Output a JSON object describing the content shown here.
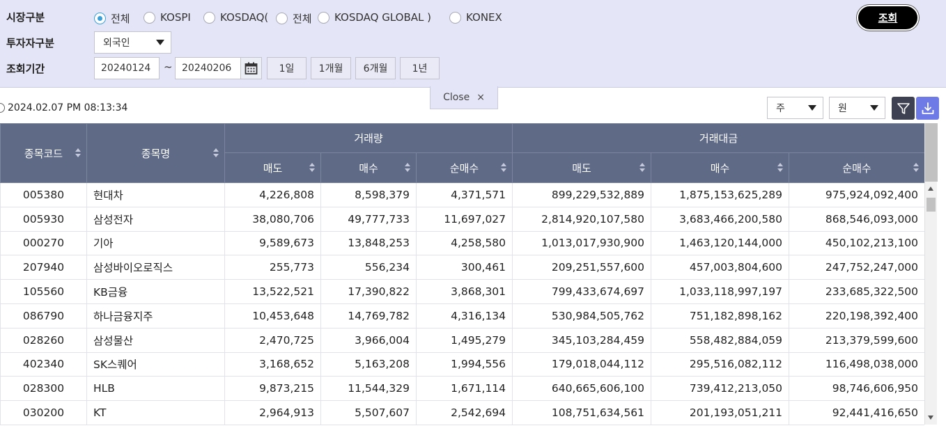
{
  "filters": {
    "market_label": "시장구분",
    "investor_label": "투자자구분",
    "period_label": "조회기간",
    "market_options": {
      "all": "전체",
      "kospi": "KOSPI",
      "kosdaq": "KOSDAQ(",
      "kosdaq_all": "전체",
      "kosdaq_global": "KOSDAQ GLOBAL )",
      "konex": "KONEX"
    },
    "market_selected": "전체",
    "investor_value": "외국인",
    "start_date": "20240124",
    "tilde": "~",
    "end_date": "20240206",
    "period_buttons": {
      "d1": "1일",
      "m1": "1개월",
      "m6": "6개월",
      "y1": "1년"
    }
  },
  "search_button_label": "조회",
  "close_label": "Close",
  "close_symbol": "×",
  "timestamp": "2024.02.07 PM 08:13:34",
  "unit_select": {
    "quantity": "주",
    "amount": "원"
  },
  "colors": {
    "header_bg": "#5f6a87",
    "panel_bg": "#e4e5f6",
    "search_bg": "#000000",
    "download_bg": "#6e7ae6",
    "filter_bg": "#3d4152",
    "radio_accent": "#3aa0d8"
  },
  "icons": {
    "calendar": "calendar-icon",
    "filter": "filter-icon",
    "download": "download-icon",
    "clock": "clock-icon"
  },
  "table": {
    "headers": {
      "code": "종목코드",
      "name": "종목명",
      "volume_group": "거래량",
      "value_group": "거래대금",
      "sell": "매도",
      "buy": "매수",
      "net": "순매수"
    },
    "rows": [
      {
        "code": "005380",
        "name": "현대차",
        "vol_sell": "4,226,808",
        "vol_buy": "8,598,379",
        "vol_net": "4,371,571",
        "val_sell": "899,229,532,889",
        "val_buy": "1,875,153,625,289",
        "val_net": "975,924,092,400"
      },
      {
        "code": "005930",
        "name": "삼성전자",
        "vol_sell": "38,080,706",
        "vol_buy": "49,777,733",
        "vol_net": "11,697,027",
        "val_sell": "2,814,920,107,580",
        "val_buy": "3,683,466,200,580",
        "val_net": "868,546,093,000"
      },
      {
        "code": "000270",
        "name": "기아",
        "vol_sell": "9,589,673",
        "vol_buy": "13,848,253",
        "vol_net": "4,258,580",
        "val_sell": "1,013,017,930,900",
        "val_buy": "1,463,120,144,000",
        "val_net": "450,102,213,100"
      },
      {
        "code": "207940",
        "name": "삼성바이오로직스",
        "vol_sell": "255,773",
        "vol_buy": "556,234",
        "vol_net": "300,461",
        "val_sell": "209,251,557,600",
        "val_buy": "457,003,804,600",
        "val_net": "247,752,247,000"
      },
      {
        "code": "105560",
        "name": "KB금융",
        "vol_sell": "13,522,521",
        "vol_buy": "17,390,822",
        "vol_net": "3,868,301",
        "val_sell": "799,433,674,697",
        "val_buy": "1,033,118,997,197",
        "val_net": "233,685,322,500"
      },
      {
        "code": "086790",
        "name": "하나금융지주",
        "vol_sell": "10,453,648",
        "vol_buy": "14,769,782",
        "vol_net": "4,316,134",
        "val_sell": "530,984,505,762",
        "val_buy": "751,182,898,162",
        "val_net": "220,198,392,400"
      },
      {
        "code": "028260",
        "name": "삼성물산",
        "vol_sell": "2,470,725",
        "vol_buy": "3,966,004",
        "vol_net": "1,495,279",
        "val_sell": "345,103,284,459",
        "val_buy": "558,482,884,059",
        "val_net": "213,379,599,600"
      },
      {
        "code": "402340",
        "name": "SK스퀘어",
        "vol_sell": "3,168,652",
        "vol_buy": "5,163,208",
        "vol_net": "1,994,556",
        "val_sell": "179,018,044,112",
        "val_buy": "295,516,082,112",
        "val_net": "116,498,038,000"
      },
      {
        "code": "028300",
        "name": "HLB",
        "vol_sell": "9,873,215",
        "vol_buy": "11,544,329",
        "vol_net": "1,671,114",
        "val_sell": "640,665,606,100",
        "val_buy": "739,412,213,050",
        "val_net": "98,746,606,950"
      },
      {
        "code": "030200",
        "name": "KT",
        "vol_sell": "2,964,913",
        "vol_buy": "5,507,607",
        "vol_net": "2,542,694",
        "val_sell": "108,751,634,561",
        "val_buy": "201,193,051,211",
        "val_net": "92,441,416,650"
      }
    ]
  }
}
